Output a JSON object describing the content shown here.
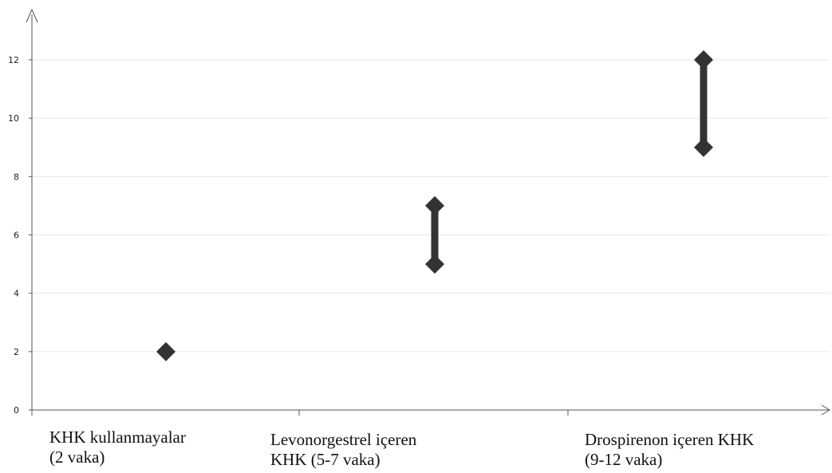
{
  "chart_data": {
    "type": "range",
    "categories": [
      "KHK kullanmayalar\n(2 vaka)",
      "Levonorgestrel içeren\nKHK (5-7 vaka)",
      "Drospirenon içeren KHK\n(9-12 vaka)"
    ],
    "series": [
      {
        "low": [
          2,
          5,
          9
        ],
        "high": [
          2,
          7,
          12
        ]
      }
    ],
    "ylim": [
      0,
      12.8
    ],
    "yticks": [
      0,
      2,
      4,
      6,
      8,
      10,
      12
    ],
    "grid": true,
    "colors": {
      "marker": "#333333",
      "axis": "#555555",
      "grid": "#e6e6e6"
    }
  }
}
